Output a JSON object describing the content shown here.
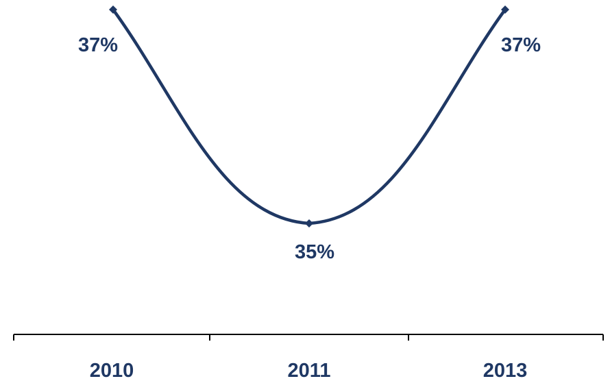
{
  "chart_data": {
    "type": "line",
    "categories": [
      "2010",
      "2011",
      "2013"
    ],
    "series": [
      {
        "values": [
          37,
          35,
          37
        ],
        "labels": [
          "37%",
          "35%",
          "37%"
        ],
        "color": "#1f3864"
      }
    ],
    "smooth": true,
    "markers": "diamond",
    "grid": false,
    "legend": "none",
    "y_axis_visible": false,
    "title": "",
    "xlabel": "",
    "ylabel": ""
  }
}
